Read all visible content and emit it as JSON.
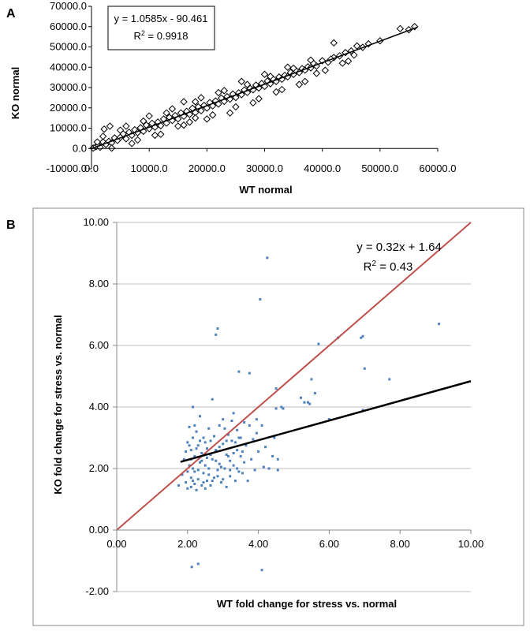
{
  "chart_data": [
    {
      "panel_label": "A",
      "type": "scatter",
      "xlabel": "WT normal",
      "ylabel": "KO normal",
      "x_ticks": [
        "0.0",
        "10000.0",
        "20000.0",
        "30000.0",
        "40000.0",
        "50000.0",
        "60000.0"
      ],
      "y_ticks": [
        "-10000.0",
        "0.0",
        "10000.0",
        "20000.0",
        "30000.0",
        "40000.0",
        "50000.0",
        "60000.0",
        "70000.0"
      ],
      "xlim": [
        0,
        60000
      ],
      "ylim": [
        -10000,
        70000
      ],
      "marker": "open-diamond",
      "trendline": {
        "slope": 1.0585,
        "intercept": -90.461,
        "x_range": [
          0,
          56500
        ]
      },
      "equation_text": "y = 1.0585x - 90.461",
      "r2_prefix": "R",
      "r2_exp": "2",
      "r2_suffix": " = 0.9918",
      "points": [
        [
          300,
          200
        ],
        [
          800,
          900
        ],
        [
          1200,
          1500
        ],
        [
          1500,
          600
        ],
        [
          2000,
          3200
        ],
        [
          2500,
          2000
        ],
        [
          3000,
          3500
        ],
        [
          3500,
          2800
        ],
        [
          4000,
          5200
        ],
        [
          4500,
          4000
        ],
        [
          1000,
          3200
        ],
        [
          2200,
          9500
        ],
        [
          3200,
          11000
        ],
        [
          5000,
          5500
        ],
        [
          5500,
          7200
        ],
        [
          6000,
          4800
        ],
        [
          6500,
          8000
        ],
        [
          7000,
          6500
        ],
        [
          7500,
          9200
        ],
        [
          8000,
          7800
        ],
        [
          8500,
          10200
        ],
        [
          9000,
          8500
        ],
        [
          9500,
          11500
        ],
        [
          10000,
          9800
        ],
        [
          10500,
          12400
        ],
        [
          11000,
          10500
        ],
        [
          11500,
          13000
        ],
        [
          12000,
          11200
        ],
        [
          12500,
          14500
        ],
        [
          13000,
          12500
        ],
        [
          13500,
          15300
        ],
        [
          14000,
          13800
        ],
        [
          14500,
          16200
        ],
        [
          15000,
          14600
        ],
        [
          15500,
          17500
        ],
        [
          16000,
          15900
        ],
        [
          16500,
          18300
        ],
        [
          17000,
          16800
        ],
        [
          17500,
          19800
        ],
        [
          18000,
          17700
        ],
        [
          18500,
          20500
        ],
        [
          19000,
          18600
        ],
        [
          19500,
          21200
        ],
        [
          20000,
          19900
        ],
        [
          20500,
          22600
        ],
        [
          21000,
          21000
        ],
        [
          21500,
          23400
        ],
        [
          22000,
          21900
        ],
        [
          22500,
          24800
        ],
        [
          23000,
          23200
        ],
        [
          23500,
          25500
        ],
        [
          24000,
          24300
        ],
        [
          24500,
          26800
        ],
        [
          25000,
          25100
        ],
        [
          25500,
          27400
        ],
        [
          26000,
          26500
        ],
        [
          26500,
          28800
        ],
        [
          27000,
          27600
        ],
        [
          27500,
          29500
        ],
        [
          28000,
          28900
        ],
        [
          28500,
          31200
        ],
        [
          29000,
          29800
        ],
        [
          29500,
          32000
        ],
        [
          30000,
          30600
        ],
        [
          30500,
          33200
        ],
        [
          31000,
          31900
        ],
        [
          31500,
          34100
        ],
        [
          32000,
          33000
        ],
        [
          32500,
          35200
        ],
        [
          33000,
          34100
        ],
        [
          33500,
          36000
        ],
        [
          34000,
          35300
        ],
        [
          34500,
          37400
        ],
        [
          35000,
          36500
        ],
        [
          35500,
          38200
        ],
        [
          36000,
          37400
        ],
        [
          36500,
          39300
        ],
        [
          37000,
          38600
        ],
        [
          37500,
          40200
        ],
        [
          38000,
          39700
        ],
        [
          38500,
          41800
        ],
        [
          39000,
          40600
        ],
        [
          40000,
          43200
        ],
        [
          41000,
          42500
        ],
        [
          42000,
          44800
        ],
        [
          43000,
          45600
        ],
        [
          44000,
          47200
        ],
        [
          45000,
          48000
        ],
        [
          42000,
          52000
        ],
        [
          48000,
          51500
        ],
        [
          50000,
          53000
        ],
        [
          53500,
          59000
        ],
        [
          55000,
          58500
        ],
        [
          56000,
          60000
        ],
        [
          12000,
          7000
        ],
        [
          15000,
          11000
        ],
        [
          18000,
          23000
        ],
        [
          20000,
          14500
        ],
        [
          22000,
          27500
        ],
        [
          25000,
          20500
        ],
        [
          27000,
          31500
        ],
        [
          29000,
          24500
        ],
        [
          31000,
          35500
        ],
        [
          33000,
          29000
        ],
        [
          35000,
          39500
        ],
        [
          37000,
          33000
        ],
        [
          24000,
          17500
        ],
        [
          26000,
          33000
        ],
        [
          28000,
          22500
        ],
        [
          30000,
          36500
        ],
        [
          32000,
          27800
        ],
        [
          34000,
          40000
        ],
        [
          36000,
          31500
        ],
        [
          38000,
          43500
        ],
        [
          10000,
          16000
        ],
        [
          14000,
          19500
        ],
        [
          16000,
          11500
        ],
        [
          19000,
          25000
        ],
        [
          21000,
          16500
        ],
        [
          23000,
          28500
        ],
        [
          5000,
          9000
        ],
        [
          7000,
          2500
        ],
        [
          9000,
          13500
        ],
        [
          11000,
          6500
        ],
        [
          13000,
          17500
        ],
        [
          17000,
          13000
        ],
        [
          2000,
          6000
        ],
        [
          3500,
          200
        ],
        [
          6000,
          11000
        ],
        [
          8000,
          4200
        ],
        [
          39000,
          37000
        ],
        [
          40500,
          38500
        ],
        [
          41500,
          44000
        ],
        [
          43500,
          42000
        ],
        [
          45500,
          46000
        ],
        [
          47000,
          49800
        ],
        [
          44500,
          43000
        ],
        [
          46000,
          50500
        ],
        [
          16000,
          23000
        ],
        [
          18000,
          15000
        ]
      ]
    },
    {
      "panel_label": "B",
      "type": "scatter",
      "xlabel": "WT fold change for stress vs. normal",
      "ylabel": "KO fold change for stress vs. normal",
      "x_ticks": [
        "0.00",
        "2.00",
        "4.00",
        "6.00",
        "8.00",
        "10.00"
      ],
      "y_ticks": [
        "-2.00",
        "0.00",
        "2.00",
        "4.00",
        "6.00",
        "8.00",
        "10.00"
      ],
      "xlim": [
        0,
        10
      ],
      "ylim": [
        -2,
        10
      ],
      "grid": "horizontal",
      "marker_color": "#4f81bd",
      "identity_line": {
        "color": "#c0504d",
        "from": [
          0,
          0
        ],
        "to": [
          10,
          10
        ]
      },
      "trendline": {
        "slope": 0.32,
        "intercept": 1.64,
        "x_range": [
          1.8,
          10
        ],
        "color": "#000000"
      },
      "equation_text": "y = 0.32x + 1.64",
      "r2_prefix": "R",
      "r2_exp": "2",
      "r2_suffix": " = 0.43",
      "points": [
        [
          1.75,
          1.45
        ],
        [
          1.85,
          1.8
        ],
        [
          1.9,
          2.3
        ],
        [
          1.95,
          1.55
        ],
        [
          2.0,
          2.85
        ],
        [
          2.0,
          1.35
        ],
        [
          2.05,
          2.1
        ],
        [
          2.05,
          3.35
        ],
        [
          2.1,
          1.7
        ],
        [
          2.1,
          2.6
        ],
        [
          2.1,
          1.4
        ],
        [
          2.15,
          2.0
        ],
        [
          2.15,
          3.0
        ],
        [
          2.15,
          4.0
        ],
        [
          2.2,
          1.5
        ],
        [
          2.2,
          2.4
        ],
        [
          2.2,
          1.9
        ],
        [
          2.25,
          3.2
        ],
        [
          2.25,
          1.3
        ],
        [
          2.3,
          2.75
        ],
        [
          2.3,
          1.65
        ],
        [
          2.35,
          2.2
        ],
        [
          2.35,
          3.7
        ],
        [
          2.4,
          1.45
        ],
        [
          2.4,
          2.5
        ],
        [
          2.45,
          1.85
        ],
        [
          2.45,
          3.0
        ],
        [
          2.5,
          2.1
        ],
        [
          2.5,
          1.35
        ],
        [
          2.55,
          2.65
        ],
        [
          2.55,
          1.6
        ],
        [
          2.6,
          3.3
        ],
        [
          2.6,
          2.0
        ],
        [
          2.65,
          1.45
        ],
        [
          2.65,
          2.9
        ],
        [
          2.7,
          2.3
        ],
        [
          2.7,
          4.25
        ],
        [
          2.75,
          1.7
        ],
        [
          2.8,
          2.6
        ],
        [
          2.8,
          6.35
        ],
        [
          2.85,
          6.55
        ],
        [
          2.85,
          1.95
        ],
        [
          2.9,
          3.4
        ],
        [
          2.9,
          2.15
        ],
        [
          2.95,
          1.55
        ],
        [
          3.0,
          2.8
        ],
        [
          3.0,
          3.6
        ],
        [
          3.05,
          2.0
        ],
        [
          3.1,
          2.45
        ],
        [
          3.1,
          1.4
        ],
        [
          3.15,
          3.1
        ],
        [
          3.2,
          2.25
        ],
        [
          3.2,
          1.75
        ],
        [
          3.25,
          2.9
        ],
        [
          3.3,
          2.1
        ],
        [
          3.3,
          3.8
        ],
        [
          3.35,
          1.6
        ],
        [
          3.4,
          2.6
        ],
        [
          3.4,
          3.25
        ],
        [
          3.45,
          1.9
        ],
        [
          3.45,
          5.15
        ],
        [
          3.5,
          2.4
        ],
        [
          3.5,
          3.0
        ],
        [
          3.55,
          1.85
        ],
        [
          3.6,
          3.5
        ],
        [
          3.6,
          2.2
        ],
        [
          3.65,
          2.75
        ],
        [
          3.7,
          1.6
        ],
        [
          3.75,
          5.1
        ],
        [
          3.75,
          3.4
        ],
        [
          3.8,
          2.3
        ],
        [
          3.85,
          2.95
        ],
        [
          3.9,
          1.95
        ],
        [
          3.95,
          3.15
        ],
        [
          4.0,
          2.55
        ],
        [
          4.05,
          7.5
        ],
        [
          4.1,
          3.4
        ],
        [
          4.15,
          2.05
        ],
        [
          4.2,
          2.7
        ],
        [
          4.25,
          8.85
        ],
        [
          4.3,
          2.0
        ],
        [
          4.4,
          2.4
        ],
        [
          4.45,
          3.0
        ],
        [
          4.5,
          4.6
        ],
        [
          4.5,
          3.95
        ],
        [
          4.55,
          1.95
        ],
        [
          4.55,
          2.3
        ],
        [
          4.7,
          3.95
        ],
        [
          1.95,
          2.55
        ],
        [
          2.0,
          1.9
        ],
        [
          2.05,
          2.75
        ],
        [
          2.1,
          2.3
        ],
        [
          2.15,
          1.6
        ],
        [
          2.2,
          3.4
        ],
        [
          2.25,
          2.65
        ],
        [
          2.3,
          1.95
        ],
        [
          2.35,
          2.9
        ],
        [
          2.4,
          2.25
        ],
        [
          2.45,
          1.55
        ],
        [
          2.5,
          2.85
        ],
        [
          2.55,
          2.35
        ],
        [
          2.6,
          1.8
        ],
        [
          2.65,
          2.45
        ],
        [
          2.7,
          1.6
        ],
        [
          2.75,
          3.05
        ],
        [
          2.8,
          2.25
        ],
        [
          2.85,
          1.75
        ],
        [
          2.9,
          2.7
        ],
        [
          2.95,
          2.05
        ],
        [
          3.0,
          1.65
        ],
        [
          3.05,
          3.3
        ],
        [
          3.1,
          2.9
        ],
        [
          3.15,
          2.4
        ],
        [
          3.2,
          1.95
        ],
        [
          3.25,
          3.55
        ],
        [
          3.3,
          2.5
        ],
        [
          3.35,
          2.85
        ],
        [
          3.4,
          2.0
        ],
        [
          3.45,
          3.0
        ],
        [
          3.55,
          2.55
        ],
        [
          2.12,
          -1.2
        ],
        [
          2.3,
          -1.1
        ],
        [
          4.1,
          -1.3
        ],
        [
          5.2,
          4.3
        ],
        [
          5.3,
          4.15
        ],
        [
          5.45,
          4.1
        ],
        [
          5.5,
          4.9
        ],
        [
          5.6,
          4.45
        ],
        [
          5.7,
          6.05
        ],
        [
          6.0,
          3.6
        ],
        [
          6.25,
          6.25
        ],
        [
          6.9,
          6.25
        ],
        [
          6.95,
          6.3
        ],
        [
          7.0,
          5.25
        ],
        [
          7.7,
          4.9
        ],
        [
          9.1,
          6.7
        ],
        [
          6.95,
          3.9
        ],
        [
          5.4,
          4.15
        ],
        [
          4.65,
          4.0
        ],
        [
          3.95,
          3.6
        ]
      ]
    }
  ]
}
